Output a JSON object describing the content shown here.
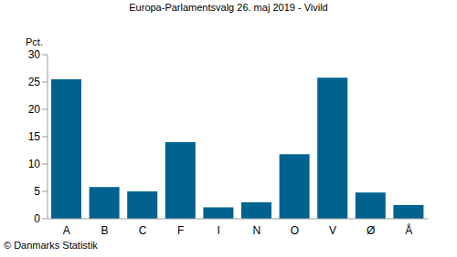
{
  "chart_data": {
    "type": "bar",
    "title": "Europa-Parlamentsvalg 26. maj 2019 - Vivild",
    "y_label": "Pct.",
    "source": "© Danmarks Statistik",
    "categories": [
      "A",
      "B",
      "C",
      "F",
      "I",
      "N",
      "O",
      "V",
      "Ø",
      "Å"
    ],
    "values": [
      25.5,
      5.8,
      5.0,
      14.0,
      2.1,
      3.0,
      11.8,
      25.8,
      4.8,
      2.5
    ],
    "color": "#00628f",
    "ylim": [
      0,
      30
    ],
    "yticks": [
      0,
      5,
      10,
      15,
      20,
      25,
      30
    ],
    "grid": false
  }
}
